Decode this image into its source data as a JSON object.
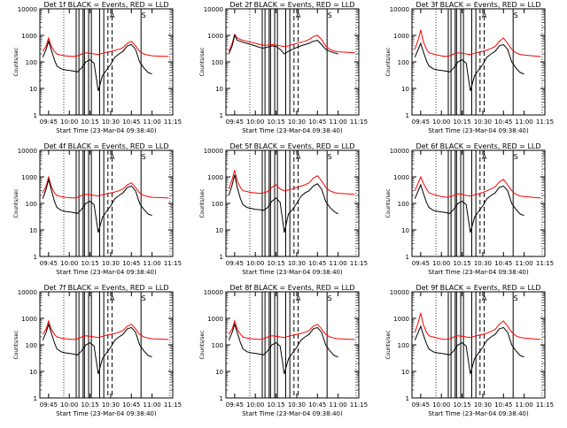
{
  "chart_data": {
    "type": "line",
    "layout": "3x3 grid of log-scale time series panels",
    "y_scale": "log",
    "ylim": [
      1,
      10000
    ],
    "xlim": [
      "09:38:40",
      "11:15"
    ],
    "x_tick_labels": [
      "09:45",
      "10:00",
      "10:15",
      "10:30",
      "10:45",
      "11:00",
      "11:15"
    ],
    "y_tick_labels": [
      "1",
      "10",
      "100",
      "1000",
      "10000"
    ],
    "ylabel": "Counts/sec",
    "xlabel": "Start Time (23-Mar-04 09:38:40)",
    "series_colors": {
      "Events": "#000000",
      "LLD": "#ff0000"
    },
    "marker_letters": [
      "A",
      "S"
    ],
    "vertical_markers": {
      "dotted": [
        "09:56",
        "11:13"
      ],
      "dashed": [
        "10:28",
        "10:31"
      ],
      "solid_near": [
        "10:05",
        "10:07",
        "10:10",
        "10:11",
        "10:14",
        "10:16",
        "10:22",
        "10:25",
        "10:52"
      ]
    },
    "panels": [
      {
        "title": "Det 1f BLACK = Events, RED = LLD",
        "events_x": [
          9.68,
          9.72,
          9.75,
          9.78,
          9.82,
          9.85,
          9.9,
          9.95,
          10.0,
          10.05,
          10.1,
          10.15,
          10.2,
          10.25,
          10.3,
          10.35,
          10.4,
          10.45,
          10.5,
          10.55,
          10.6,
          10.65,
          10.7,
          10.75,
          10.8,
          10.85,
          10.9,
          10.95,
          11.0
        ],
        "events_y": [
          150,
          300,
          600,
          300,
          120,
          70,
          55,
          50,
          48,
          45,
          42,
          60,
          100,
          120,
          90,
          8,
          30,
          50,
          80,
          150,
          200,
          250,
          400,
          450,
          300,
          100,
          60,
          40,
          35
        ],
        "lld_x": [
          9.68,
          9.72,
          9.75,
          9.78,
          9.82,
          9.85,
          9.9,
          9.95,
          10.0,
          10.05,
          10.1,
          10.15,
          10.2,
          10.25,
          10.3,
          10.35,
          10.4,
          10.45,
          10.5,
          10.55,
          10.6,
          10.65,
          10.7,
          10.75,
          10.8,
          10.85,
          10.9,
          10.95,
          11.0,
          11.1,
          11.2
        ],
        "lld_y": [
          250,
          400,
          800,
          400,
          250,
          200,
          180,
          170,
          165,
          160,
          170,
          200,
          220,
          210,
          200,
          190,
          210,
          230,
          250,
          270,
          300,
          350,
          500,
          600,
          400,
          250,
          200,
          180,
          170,
          165,
          160
        ]
      },
      {
        "title": "Det 2f BLACK = Events, RED = LLD",
        "events_x": [
          9.68,
          9.72,
          9.75,
          9.78,
          9.82,
          9.85,
          9.9,
          9.95,
          10.0,
          10.05,
          10.1,
          10.15,
          10.2,
          10.25,
          10.3,
          10.35,
          10.4,
          10.45,
          10.5,
          10.55,
          10.6,
          10.65,
          10.7,
          10.75,
          10.8,
          10.85,
          10.9,
          10.95,
          11.0
        ],
        "events_y": [
          200,
          400,
          1000,
          650,
          600,
          550,
          500,
          450,
          400,
          350,
          330,
          360,
          400,
          380,
          300,
          200,
          250,
          300,
          350,
          400,
          450,
          500,
          600,
          650,
          450,
          300,
          250,
          220,
          200
        ],
        "lld_x": [
          9.68,
          9.72,
          9.75,
          9.78,
          9.82,
          9.85,
          9.9,
          9.95,
          10.0,
          10.05,
          10.1,
          10.15,
          10.2,
          10.25,
          10.3,
          10.35,
          10.4,
          10.45,
          10.5,
          10.55,
          10.6,
          10.65,
          10.7,
          10.75,
          10.8,
          10.85,
          10.9,
          10.95,
          11.0,
          11.1,
          11.2
        ],
        "lld_y": [
          250,
          500,
          1100,
          800,
          700,
          650,
          600,
          550,
          500,
          450,
          420,
          430,
          450,
          430,
          400,
          380,
          400,
          450,
          500,
          550,
          600,
          700,
          900,
          1000,
          700,
          400,
          300,
          260,
          240,
          230,
          220
        ]
      },
      {
        "title": "Det 3f BLACK = Events, RED = LLD",
        "events_x": [
          9.68,
          9.72,
          9.75,
          9.78,
          9.82,
          9.85,
          9.9,
          9.95,
          10.0,
          10.05,
          10.1,
          10.15,
          10.2,
          10.25,
          10.3,
          10.35,
          10.4,
          10.45,
          10.5,
          10.55,
          10.6,
          10.65,
          10.7,
          10.75,
          10.8,
          10.85,
          10.9,
          10.95,
          11.0
        ],
        "events_y": [
          150,
          300,
          500,
          250,
          110,
          70,
          55,
          50,
          48,
          45,
          42,
          60,
          100,
          120,
          90,
          8,
          30,
          50,
          80,
          150,
          200,
          250,
          400,
          450,
          300,
          100,
          60,
          40,
          35
        ],
        "lld_x": [
          9.68,
          9.72,
          9.75,
          9.78,
          9.82,
          9.85,
          9.9,
          9.95,
          10.0,
          10.05,
          10.1,
          10.15,
          10.2,
          10.25,
          10.3,
          10.35,
          10.4,
          10.45,
          10.5,
          10.55,
          10.6,
          10.65,
          10.7,
          10.75,
          10.8,
          10.85,
          10.9,
          10.95,
          11.0,
          11.1,
          11.2
        ],
        "lld_y": [
          300,
          700,
          1600,
          600,
          300,
          220,
          200,
          180,
          170,
          160,
          170,
          200,
          220,
          210,
          200,
          190,
          210,
          230,
          250,
          280,
          320,
          380,
          600,
          800,
          500,
          300,
          220,
          190,
          180,
          170,
          160
        ]
      },
      {
        "title": "Det 4f BLACK = Events, RED = LLD",
        "events_x": [
          9.68,
          9.72,
          9.75,
          9.78,
          9.82,
          9.85,
          9.9,
          9.95,
          10.0,
          10.05,
          10.1,
          10.15,
          10.2,
          10.25,
          10.3,
          10.35,
          10.4,
          10.45,
          10.5,
          10.55,
          10.6,
          10.65,
          10.7,
          10.75,
          10.8,
          10.85,
          10.9,
          10.95,
          11.0
        ],
        "events_y": [
          150,
          350,
          800,
          350,
          120,
          70,
          55,
          50,
          48,
          45,
          42,
          60,
          100,
          120,
          90,
          8,
          30,
          50,
          80,
          150,
          200,
          250,
          400,
          450,
          300,
          100,
          60,
          40,
          35
        ],
        "lld_x": [
          9.68,
          9.72,
          9.75,
          9.78,
          9.82,
          9.85,
          9.9,
          9.95,
          10.0,
          10.05,
          10.1,
          10.15,
          10.2,
          10.25,
          10.3,
          10.35,
          10.4,
          10.45,
          10.5,
          10.55,
          10.6,
          10.65,
          10.7,
          10.75,
          10.8,
          10.85,
          10.9,
          10.95,
          11.0,
          11.1,
          11.2
        ],
        "lld_y": [
          250,
          450,
          1000,
          450,
          250,
          200,
          180,
          170,
          165,
          160,
          170,
          200,
          220,
          210,
          200,
          190,
          210,
          230,
          250,
          270,
          300,
          350,
          500,
          600,
          400,
          250,
          200,
          180,
          170,
          165,
          160
        ]
      },
      {
        "title": "Det 5f BLACK = Events, RED = LLD",
        "events_x": [
          9.68,
          9.72,
          9.75,
          9.78,
          9.82,
          9.85,
          9.9,
          9.95,
          10.0,
          10.05,
          10.1,
          10.15,
          10.2,
          10.25,
          10.3,
          10.35,
          10.4,
          10.45,
          10.5,
          10.55,
          10.6,
          10.65,
          10.7,
          10.75,
          10.8,
          10.85,
          10.9,
          10.95,
          11.0
        ],
        "events_y": [
          200,
          500,
          1200,
          400,
          150,
          90,
          70,
          65,
          60,
          58,
          55,
          70,
          120,
          160,
          110,
          8,
          40,
          60,
          100,
          180,
          250,
          300,
          450,
          550,
          350,
          120,
          70,
          50,
          40
        ],
        "lld_x": [
          9.68,
          9.72,
          9.75,
          9.78,
          9.82,
          9.85,
          9.9,
          9.95,
          10.0,
          10.05,
          10.1,
          10.15,
          10.2,
          10.25,
          10.3,
          10.35,
          10.4,
          10.45,
          10.5,
          10.55,
          10.6,
          10.65,
          10.7,
          10.75,
          10.8,
          10.85,
          10.9,
          10.95,
          11.0,
          11.1,
          11.2
        ],
        "lld_y": [
          350,
          800,
          1800,
          700,
          400,
          300,
          280,
          260,
          250,
          240,
          250,
          280,
          400,
          500,
          350,
          300,
          320,
          350,
          400,
          450,
          500,
          600,
          900,
          1100,
          700,
          400,
          300,
          260,
          240,
          230,
          220
        ]
      },
      {
        "title": "Det 6f BLACK = Events, RED = LLD",
        "events_x": [
          9.68,
          9.72,
          9.75,
          9.78,
          9.82,
          9.85,
          9.9,
          9.95,
          10.0,
          10.05,
          10.1,
          10.15,
          10.2,
          10.25,
          10.3,
          10.35,
          10.4,
          10.45,
          10.5,
          10.55,
          10.6,
          10.65,
          10.7,
          10.75,
          10.8,
          10.85,
          10.9,
          10.95,
          11.0
        ],
        "events_y": [
          150,
          300,
          500,
          250,
          110,
          70,
          55,
          50,
          48,
          45,
          42,
          60,
          100,
          120,
          90,
          8,
          30,
          50,
          80,
          150,
          200,
          250,
          400,
          450,
          300,
          100,
          60,
          40,
          35
        ],
        "lld_x": [
          9.68,
          9.72,
          9.75,
          9.78,
          9.82,
          9.85,
          9.9,
          9.95,
          10.0,
          10.05,
          10.1,
          10.15,
          10.2,
          10.25,
          10.3,
          10.35,
          10.4,
          10.45,
          10.5,
          10.55,
          10.6,
          10.65,
          10.7,
          10.75,
          10.8,
          10.85,
          10.9,
          10.95,
          11.0,
          11.1,
          11.2
        ],
        "lld_y": [
          300,
          600,
          1000,
          600,
          350,
          250,
          220,
          200,
          180,
          170,
          175,
          200,
          230,
          220,
          200,
          190,
          210,
          230,
          260,
          300,
          350,
          420,
          650,
          800,
          500,
          300,
          220,
          190,
          180,
          170,
          160
        ]
      },
      {
        "title": "Det 7f BLACK = Events, RED = LLD",
        "events_x": [
          9.68,
          9.72,
          9.75,
          9.78,
          9.82,
          9.85,
          9.9,
          9.95,
          10.0,
          10.05,
          10.1,
          10.15,
          10.2,
          10.25,
          10.3,
          10.35,
          10.4,
          10.45,
          10.5,
          10.55,
          10.6,
          10.65,
          10.7,
          10.75,
          10.8,
          10.85,
          10.9,
          10.95,
          11.0
        ],
        "events_y": [
          150,
          300,
          600,
          300,
          120,
          70,
          55,
          50,
          48,
          45,
          42,
          60,
          100,
          120,
          90,
          8,
          30,
          50,
          80,
          150,
          200,
          250,
          400,
          450,
          300,
          100,
          60,
          40,
          35
        ],
        "lld_x": [
          9.68,
          9.72,
          9.75,
          9.78,
          9.82,
          9.85,
          9.9,
          9.95,
          10.0,
          10.05,
          10.1,
          10.15,
          10.2,
          10.25,
          10.3,
          10.35,
          10.4,
          10.45,
          10.5,
          10.55,
          10.6,
          10.65,
          10.7,
          10.75,
          10.8,
          10.85,
          10.9,
          10.95,
          11.0,
          11.1,
          11.2
        ],
        "lld_y": [
          250,
          400,
          800,
          400,
          250,
          200,
          180,
          170,
          165,
          160,
          170,
          200,
          220,
          210,
          200,
          190,
          210,
          230,
          250,
          270,
          300,
          350,
          500,
          600,
          400,
          250,
          200,
          180,
          170,
          165,
          160
        ]
      },
      {
        "title": "Det 8f BLACK = Events, RED = LLD",
        "events_x": [
          9.68,
          9.72,
          9.75,
          9.78,
          9.82,
          9.85,
          9.9,
          9.95,
          10.0,
          10.05,
          10.1,
          10.15,
          10.2,
          10.25,
          10.3,
          10.35,
          10.4,
          10.45,
          10.5,
          10.55,
          10.6,
          10.65,
          10.7,
          10.75,
          10.8,
          10.85,
          10.9,
          10.95,
          11.0
        ],
        "events_y": [
          150,
          300,
          600,
          300,
          120,
          70,
          55,
          50,
          48,
          45,
          42,
          60,
          100,
          120,
          90,
          8,
          30,
          50,
          80,
          150,
          200,
          250,
          400,
          450,
          300,
          100,
          60,
          40,
          35
        ],
        "lld_x": [
          9.68,
          9.72,
          9.75,
          9.78,
          9.82,
          9.85,
          9.9,
          9.95,
          10.0,
          10.05,
          10.1,
          10.15,
          10.2,
          10.25,
          10.3,
          10.35,
          10.4,
          10.45,
          10.5,
          10.55,
          10.6,
          10.65,
          10.7,
          10.75,
          10.8,
          10.85,
          10.9,
          10.95,
          11.0,
          11.1,
          11.2
        ],
        "lld_y": [
          250,
          400,
          800,
          400,
          250,
          200,
          180,
          170,
          165,
          160,
          170,
          200,
          220,
          210,
          200,
          190,
          210,
          230,
          250,
          270,
          300,
          350,
          500,
          600,
          400,
          250,
          200,
          180,
          170,
          165,
          160
        ]
      },
      {
        "title": "Det 9f BLACK = Events, RED = LLD",
        "events_x": [
          9.68,
          9.72,
          9.75,
          9.78,
          9.82,
          9.85,
          9.9,
          9.95,
          10.0,
          10.05,
          10.1,
          10.15,
          10.2,
          10.25,
          10.3,
          10.35,
          10.4,
          10.45,
          10.5,
          10.55,
          10.6,
          10.65,
          10.7,
          10.75,
          10.8,
          10.85,
          10.9,
          10.95,
          11.0
        ],
        "events_y": [
          150,
          300,
          500,
          250,
          110,
          70,
          55,
          50,
          48,
          45,
          42,
          60,
          100,
          120,
          90,
          8,
          30,
          50,
          80,
          150,
          200,
          250,
          400,
          450,
          300,
          100,
          60,
          40,
          35
        ],
        "lld_x": [
          9.68,
          9.72,
          9.75,
          9.78,
          9.82,
          9.85,
          9.9,
          9.95,
          10.0,
          10.05,
          10.1,
          10.15,
          10.2,
          10.25,
          10.3,
          10.35,
          10.4,
          10.45,
          10.5,
          10.55,
          10.6,
          10.65,
          10.7,
          10.75,
          10.8,
          10.85,
          10.9,
          10.95,
          11.0,
          11.1,
          11.2
        ],
        "lld_y": [
          300,
          700,
          1600,
          600,
          300,
          220,
          200,
          180,
          170,
          160,
          170,
          200,
          220,
          210,
          200,
          190,
          210,
          230,
          250,
          280,
          320,
          380,
          600,
          800,
          500,
          300,
          220,
          190,
          180,
          170,
          160
        ]
      }
    ]
  }
}
